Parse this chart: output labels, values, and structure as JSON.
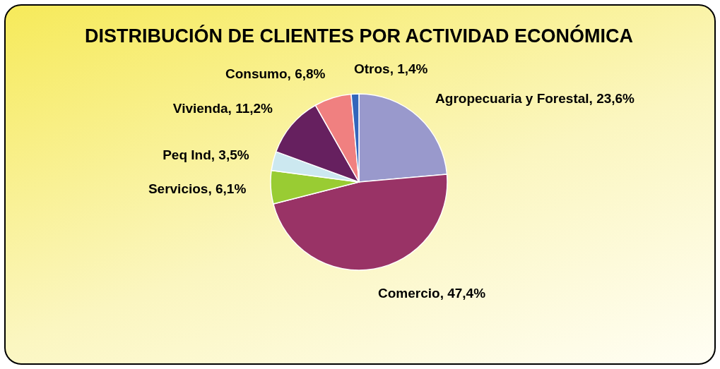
{
  "chart_data": {
    "type": "pie",
    "title": "DISTRIBUCIÓN DE CLIENTES POR ACTIVIDAD ECONÓMICA",
    "categories": [
      "Agropecuaria y Forestal",
      "Comercio",
      "Servicios",
      "Peq Ind",
      "Vivienda",
      "Consumo",
      "Otros"
    ],
    "values": [
      23.6,
      47.4,
      6.1,
      3.5,
      11.2,
      6.8,
      1.4
    ],
    "value_labels": [
      "23,6%",
      "47,4%",
      "6,1%",
      "3,5%",
      "11,2%",
      "6,8%",
      "1,4%"
    ],
    "colors": [
      "#9999cc",
      "#993366",
      "#99cc33",
      "#cce8f0",
      "#66205f",
      "#f08080",
      "#3366bb"
    ],
    "legend": false
  }
}
